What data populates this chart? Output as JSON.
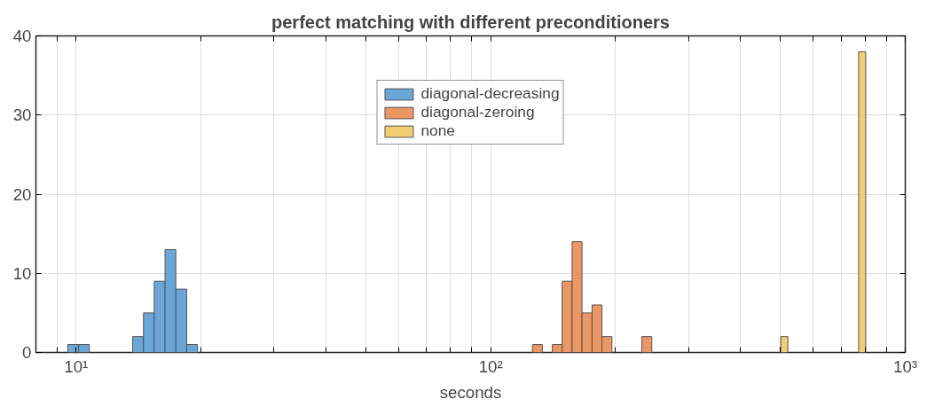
{
  "chart_data": {
    "type": "histogram",
    "title": "perfect matching with different preconditioners",
    "xlabel": "seconds",
    "log": "x",
    "xlim": [
      8,
      1000
    ],
    "ylim": [
      0,
      40
    ],
    "xticks": [
      {
        "value": 9,
        "label": null
      },
      {
        "value": 10,
        "label": "10¹"
      },
      {
        "value": 20,
        "label": null
      },
      {
        "value": 30,
        "label": null
      },
      {
        "value": 40,
        "label": null
      },
      {
        "value": 50,
        "label": null
      },
      {
        "value": 60,
        "label": null
      },
      {
        "value": 70,
        "label": null
      },
      {
        "value": 80,
        "label": null
      },
      {
        "value": 90,
        "label": null
      },
      {
        "value": 100,
        "label": "10²"
      },
      {
        "value": 200,
        "label": null
      },
      {
        "value": 300,
        "label": null
      },
      {
        "value": 400,
        "label": null
      },
      {
        "value": 500,
        "label": null
      },
      {
        "value": 600,
        "label": null
      },
      {
        "value": 700,
        "label": null
      },
      {
        "value": 800,
        "label": null
      },
      {
        "value": 900,
        "label": null
      },
      {
        "value": 1000,
        "label": "10³"
      }
    ],
    "yticks": [
      0,
      10,
      20,
      30,
      40
    ],
    "grid": true,
    "legend": "top",
    "bins": [
      9.547,
      10.14,
      10.77,
      13.69,
      14.54,
      15.43,
      16.39,
      17.4,
      18.48,
      19.63,
      126.1,
      133.2,
      140.8,
      148.7,
      157.2,
      166.1,
      175.6,
      185.5,
      196.1,
      231.5,
      244.7,
      500.9,
      521.0,
      771.8,
      802.8
    ],
    "series": [
      {
        "name": "diagonal-decreasing",
        "color": "#6aa6d8",
        "values": [
          1,
          1,
          0,
          2,
          5,
          9,
          13,
          8,
          1,
          0,
          0,
          0,
          0,
          0,
          0,
          0,
          0,
          0,
          0,
          0,
          0,
          0,
          0,
          0
        ]
      },
      {
        "name": "diagonal-zeroing",
        "color": "#eb9663",
        "values": [
          0,
          0,
          0,
          0,
          0,
          0,
          0,
          0,
          0,
          0,
          1,
          0,
          1,
          9,
          14,
          5,
          6,
          2,
          0,
          2,
          0,
          0,
          0,
          0
        ]
      },
      {
        "name": "none",
        "color": "#f2cd73",
        "values": [
          0,
          0,
          0,
          0,
          0,
          0,
          0,
          0,
          0,
          0,
          0,
          0,
          0,
          0,
          0,
          0,
          0,
          0,
          0,
          0,
          0,
          2,
          0,
          38
        ]
      }
    ]
  }
}
